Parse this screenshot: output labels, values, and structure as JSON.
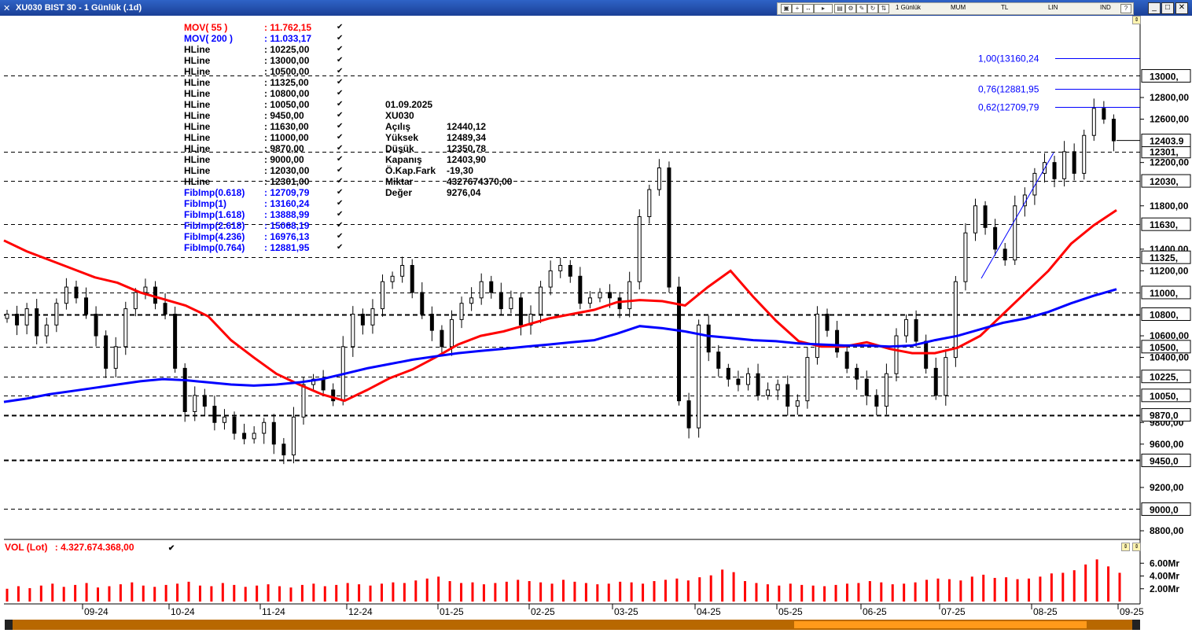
{
  "window": {
    "title": "XU030 BIST 30 - 1 Günlük (.1d)"
  },
  "toolbar": {
    "items": [
      "1 Günlük",
      "MUM",
      "TL",
      "LIN",
      "IND"
    ]
  },
  "indicators": [
    {
      "name": "MOV( 55 )",
      "value": ": 11.762,15",
      "color": "#ff0000"
    },
    {
      "name": "MOV( 200 )",
      "value": ": 11.033,17",
      "color": "#0000ff"
    },
    {
      "name": "HLine",
      "value": ": 10225,00",
      "color": "#000000"
    },
    {
      "name": "HLine",
      "value": ": 13000,00",
      "color": "#000000"
    },
    {
      "name": "HLine",
      "value": ": 10500,00",
      "color": "#000000"
    },
    {
      "name": "HLine",
      "value": ": 11325,00",
      "color": "#000000"
    },
    {
      "name": "HLine",
      "value": ": 10800,00",
      "color": "#000000"
    },
    {
      "name": "HLine",
      "value": ": 10050,00",
      "color": "#000000"
    },
    {
      "name": "HLine",
      "value": ": 9450,00",
      "color": "#000000"
    },
    {
      "name": "HLine",
      "value": ": 11630,00",
      "color": "#000000"
    },
    {
      "name": "HLine",
      "value": ": 11000,00",
      "color": "#000000"
    },
    {
      "name": "HLine",
      "value": ": 9870,00",
      "color": "#000000"
    },
    {
      "name": "HLine",
      "value": ": 9000,00",
      "color": "#000000"
    },
    {
      "name": "HLine",
      "value": ": 12030,00",
      "color": "#000000"
    },
    {
      "name": "HLine",
      "value": ": 12301,00",
      "color": "#000000"
    },
    {
      "name": "FibImp(0.618)",
      "value": ": 12709,79",
      "color": "#0000ff"
    },
    {
      "name": "FibImp(1)",
      "value": ": 13160,24",
      "color": "#0000ff"
    },
    {
      "name": "FibImp(1.618)",
      "value": ": 13888,99",
      "color": "#0000ff"
    },
    {
      "name": "FibImp(2.618)",
      "value": ": 15068,19",
      "color": "#0000ff"
    },
    {
      "name": "FibImp(4.236)",
      "value": ": 16976,13",
      "color": "#0000ff"
    },
    {
      "name": "FibImp(0.764)",
      "value": ": 12881,95",
      "color": "#0000ff"
    }
  ],
  "ohlc": {
    "date": "01.09.2025",
    "symbol": "XU030",
    "rows": [
      {
        "label": "Açılış",
        "value": "12440,12"
      },
      {
        "label": "Yüksek",
        "value": "12489,34"
      },
      {
        "label": "Düşük",
        "value": "12350,78"
      },
      {
        "label": "Kapanış",
        "value": "12403,90"
      },
      {
        "label": "Ö.Kap.Fark",
        "value": "-19,30"
      },
      {
        "label": "Miktar",
        "value": "4327674370,00"
      },
      {
        "label": "Değer",
        "value": "9276,04"
      }
    ]
  },
  "volume": {
    "label": "VOL (Lot)",
    "value": ": 4.327.674.368,00"
  },
  "chart_data": {
    "type": "candlestick",
    "symbol": "XU030",
    "ylim": [
      8700,
      13300
    ],
    "y_ticks": [
      8800,
      9200,
      9600,
      9800,
      10400,
      10600,
      11200,
      11400,
      11800,
      12200,
      12600,
      12800
    ],
    "y_tick_labels": [
      "8800,00",
      "9200,00",
      "9600,00",
      "9800,00",
      "10400,00",
      "10600,00",
      "11200,00",
      "11400,00",
      "11800,00",
      "12200,00",
      "12600,00",
      "12800,00"
    ],
    "x_tick_labels": [
      "09-24",
      "10-24",
      "11-24",
      "12-24",
      "01-25",
      "02-25",
      "03-25",
      "04-25",
      "05-25",
      "06-25",
      "07-25",
      "08-25",
      "09-25"
    ],
    "hlines": [
      {
        "value": 13000,
        "label": "13000,"
      },
      {
        "value": 12301,
        "label": "12301,"
      },
      {
        "value": 12030,
        "label": "12030,"
      },
      {
        "value": 11630,
        "label": "11630,"
      },
      {
        "value": 11325,
        "label": "11325,"
      },
      {
        "value": 11000,
        "label": "11000,"
      },
      {
        "value": 10800,
        "label": "10800,",
        "bold": true
      },
      {
        "value": 10500,
        "label": "10500,"
      },
      {
        "value": 10225,
        "label": "10225,"
      },
      {
        "value": 10050,
        "label": "10050,"
      },
      {
        "value": 9870,
        "label": "9870,0",
        "bold": true
      },
      {
        "value": 9450,
        "label": "9450,0",
        "bold": true
      },
      {
        "value": 9000,
        "label": "9000,0"
      }
    ],
    "last_price": {
      "value": 12403.9,
      "label": "12403.9"
    },
    "fib_levels": [
      {
        "value": 13160.24,
        "label": "1,00(13160,24"
      },
      {
        "value": 12881.95,
        "label": "0,76(12881,95"
      },
      {
        "value": 12709.79,
        "label": "0,62(12709,79"
      }
    ],
    "fib_trend": {
      "from": [
        "07-25",
        11130
      ],
      "to": [
        "08-25",
        12290
      ]
    },
    "ma_series": [
      {
        "name": "MOV( 55 )",
        "color": "#ff0000",
        "values": [
          11480,
          11380,
          11300,
          11220,
          11140,
          11090,
          11000,
          10940,
          10880,
          10780,
          10560,
          10400,
          10250,
          10150,
          10060,
          10000,
          10100,
          10210,
          10290,
          10400,
          10520,
          10600,
          10640,
          10700,
          10760,
          10800,
          10840,
          10910,
          10930,
          10920,
          10880,
          11050,
          11200,
          10960,
          10740,
          10550,
          10500,
          10500,
          10540,
          10480,
          10440,
          10440,
          10490,
          10600,
          10800,
          11000,
          11200,
          11450,
          11620,
          11760
        ]
      },
      {
        "name": "MOV( 200 )",
        "color": "#0000ff",
        "values": [
          9990,
          10020,
          10060,
          10090,
          10120,
          10150,
          10180,
          10200,
          10190,
          10170,
          10150,
          10140,
          10150,
          10170,
          10200,
          10250,
          10300,
          10340,
          10380,
          10410,
          10440,
          10460,
          10480,
          10500,
          10520,
          10540,
          10560,
          10620,
          10690,
          10670,
          10640,
          10600,
          10580,
          10560,
          10550,
          10530,
          10520,
          10510,
          10510,
          10500,
          10510,
          10560,
          10600,
          10660,
          10720,
          10760,
          10820,
          10900,
          10970,
          11030
        ]
      }
    ],
    "candles": {
      "step_days": 6,
      "close": [
        10800,
        10700,
        10850,
        10600,
        10700,
        10900,
        11050,
        10950,
        10800,
        10600,
        10300,
        10500,
        10850,
        11000,
        11050,
        10900,
        10800,
        10300,
        9900,
        10050,
        9950,
        9800,
        9850,
        9700,
        9650,
        9700,
        9800,
        9600,
        9500,
        9850,
        10150,
        10200,
        10100,
        10000,
        10500,
        10800,
        10700,
        10850,
        11100,
        11150,
        11250,
        11000,
        10800,
        10650,
        10500,
        10750,
        10900,
        10950,
        11100,
        11000,
        10850,
        10950,
        10700,
        10800,
        11050,
        11200,
        11250,
        11150,
        10900,
        10950,
        11000,
        10950,
        10850,
        11100,
        11700,
        11950,
        12150,
        11050,
        10000,
        9750,
        10700,
        10450,
        10300,
        10200,
        10150,
        10250,
        10050,
        10100,
        10150,
        9950,
        10000,
        10400,
        10800,
        10650,
        10450,
        10300,
        10200,
        10050,
        9950,
        10250,
        10600,
        10750,
        10550,
        10300,
        10050,
        10400,
        11100,
        11550,
        11800,
        11600,
        11400,
        11300,
        11800,
        11900,
        12100,
        12200,
        12050,
        12300,
        12100,
        12450,
        12700,
        12600,
        12400
      ]
    },
    "volume_bars": {
      "axis_labels": [
        "6.00Mr",
        "4.00Mr",
        "2.00Mr"
      ],
      "ylim": [
        0,
        8
      ],
      "values": [
        2.0,
        2.4,
        2.1,
        2.5,
        2.8,
        2.3,
        2.6,
        2.9,
        2.2,
        2.4,
        2.7,
        3.0,
        2.5,
        2.3,
        2.6,
        2.8,
        3.1,
        2.5,
        2.4,
        2.9,
        2.6,
        2.3,
        2.5,
        2.7,
        2.4,
        2.2,
        2.6,
        2.8,
        2.4,
        2.6,
        2.9,
        2.7,
        2.5,
        2.8,
        3.0,
        2.9,
        3.3,
        3.6,
        3.9,
        3.2,
        2.9,
        3.0,
        2.7,
        2.9,
        3.1,
        3.4,
        3.2,
        3.0,
        2.8,
        3.4,
        3.1,
        2.9,
        2.7,
        2.8,
        3.1,
        3.0,
        2.8,
        3.2,
        3.4,
        3.6,
        3.3,
        3.8,
        4.1,
        5.0,
        4.6,
        3.2,
        2.9,
        2.7,
        2.5,
        2.8,
        2.6,
        2.5,
        2.4,
        2.6,
        2.8,
        2.9,
        3.2,
        3.0,
        2.7,
        2.8,
        3.0,
        3.4,
        3.6,
        3.5,
        3.3,
        3.9,
        4.2,
        3.7,
        3.8,
        3.5,
        3.6,
        3.9,
        4.4,
        4.5,
        4.9,
        5.8,
        6.6,
        5.5,
        4.5
      ]
    }
  }
}
